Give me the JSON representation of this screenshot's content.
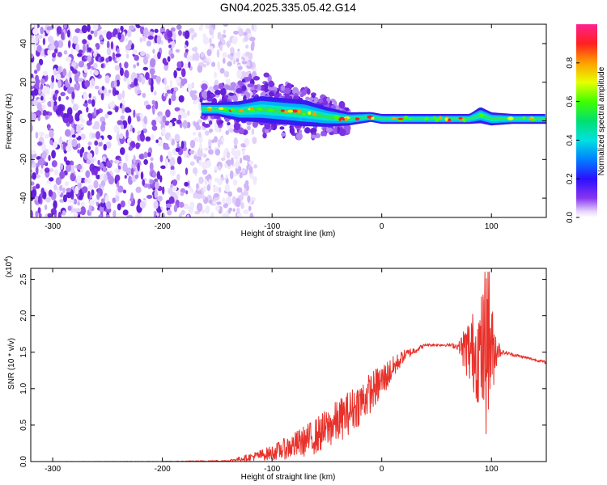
{
  "figure": {
    "title": "GN04.2025.335.05.42.G14"
  },
  "colors": {
    "snr_line": "#e8312a",
    "ridge_core": "#ff2020",
    "scatter": "#7b2fe0"
  },
  "chart_data": [
    {
      "type": "heatmap",
      "xlabel": "Height of straight line (km)",
      "ylabel": "Frequency (Hz)",
      "xlim": [
        -320,
        150
      ],
      "ylim": [
        -50,
        50
      ],
      "xticks": [
        -300,
        -200,
        -100,
        0,
        100
      ],
      "yticks": [
        -40,
        -20,
        0,
        20,
        40
      ],
      "colorbar": {
        "label": "Normalized spectral amplitude",
        "range": [
          0.0,
          1.0
        ],
        "ticks": [
          "0.0",
          "0.2",
          "0.4",
          "0.6",
          "0.8"
        ],
        "tick_values": [
          0.0,
          0.2,
          0.4,
          0.6,
          0.8
        ],
        "colormap": "rainbow (white-violet-blue-cyan-green-yellow-orange-red-magenta)"
      },
      "ridge": {
        "x": [
          -165,
          -150,
          -130,
          -110,
          -90,
          -70,
          -50,
          -30,
          -10,
          0,
          20,
          40,
          60,
          80,
          90,
          100,
          120,
          150
        ],
        "freq": [
          6,
          6,
          5,
          6,
          5,
          4,
          2,
          1,
          2,
          1,
          1,
          1,
          1,
          1,
          3,
          1,
          1,
          1
        ],
        "width": [
          4,
          4,
          6,
          8,
          8,
          8,
          6,
          4,
          3,
          3,
          3,
          3,
          3,
          3,
          5,
          4,
          3,
          3
        ]
      },
      "noise_region_x": [
        -320,
        -140
      ]
    },
    {
      "type": "line",
      "xlabel": "Height of straight line (km)",
      "ylabel": "SNR (10 * v/v)",
      "scale_label": "(x10",
      "scale_exponent": "4",
      "xlim": [
        -320,
        150
      ],
      "ylim": [
        0,
        2.65
      ],
      "xticks": [
        -300,
        -200,
        -100,
        0,
        100
      ],
      "yticks": [
        0.0,
        0.5,
        1.0,
        1.5,
        2.0,
        2.5
      ],
      "ytick_labels": [
        "0.0",
        "0.5",
        "1.0",
        "1.5",
        "2.0",
        "2.5"
      ],
      "envelope": {
        "x": [
          -320,
          -200,
          -140,
          -120,
          -100,
          -80,
          -60,
          -40,
          -20,
          0,
          20,
          40,
          60,
          70,
          75,
          80,
          85,
          90,
          95,
          100,
          105,
          110,
          130,
          150
        ],
        "base": [
          0.0,
          0.0,
          0.01,
          0.06,
          0.12,
          0.22,
          0.35,
          0.55,
          0.8,
          1.1,
          1.45,
          1.6,
          1.6,
          1.58,
          1.55,
          1.52,
          1.5,
          1.48,
          1.45,
          1.5,
          1.55,
          1.5,
          1.43,
          1.36
        ],
        "noise": [
          0.0,
          0.005,
          0.01,
          0.05,
          0.1,
          0.18,
          0.25,
          0.3,
          0.3,
          0.25,
          0.08,
          0.02,
          0.02,
          0.05,
          0.3,
          0.5,
          0.6,
          0.8,
          1.1,
          0.7,
          0.2,
          0.03,
          0.02,
          0.02
        ]
      }
    }
  ]
}
